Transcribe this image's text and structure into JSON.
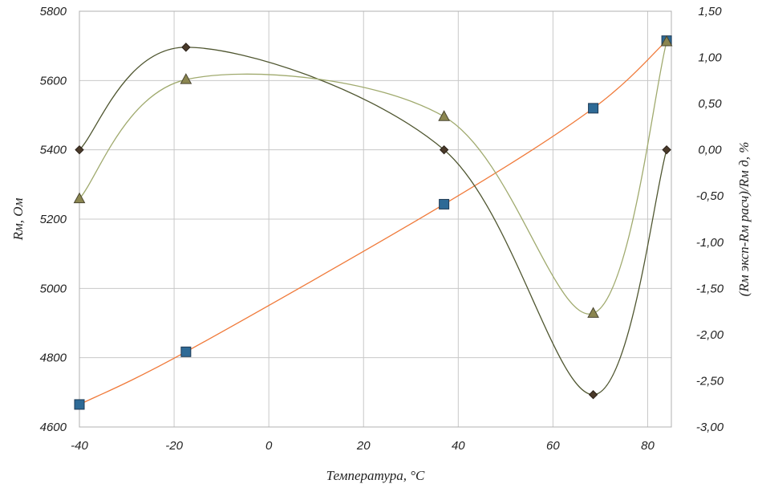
{
  "chart_data": {
    "type": "line",
    "title": "",
    "xlabel": "Температура, °С",
    "ylabel_left": "Rм, Ом",
    "ylabel_right": "(Rм эксп-Rм расч)/Rм д, %",
    "xlim": [
      -40,
      85
    ],
    "ylim_left": [
      4600,
      5800
    ],
    "ylim_right": [
      -3.0,
      1.5
    ],
    "x_ticks": [
      "-40",
      "-20",
      "0",
      "20",
      "40",
      "60",
      "80"
    ],
    "y_left_ticks": [
      "4600",
      "4800",
      "5000",
      "5200",
      "5400",
      "5600",
      "5800"
    ],
    "y_right_ticks": [
      "-3,00",
      "-2,50",
      "-2,00",
      "-1,50",
      "-1,00",
      "-0,50",
      "0,00",
      "0,50",
      "1,00",
      "1,50"
    ],
    "grid": true,
    "legend": "none",
    "series": [
      {
        "axis": "left",
        "marker": "square",
        "color": "#2e6a96",
        "line_color": "#f07a3a",
        "points": [
          [
            -40,
            4665
          ],
          [
            -17.5,
            4817
          ],
          [
            37,
            5243
          ],
          [
            68.5,
            5520
          ],
          [
            84,
            5715
          ]
        ]
      },
      {
        "axis": "right",
        "marker": "diamond",
        "color": "#4a3a2a",
        "line_color": "#4f5630",
        "points": [
          [
            -40,
            0.0
          ],
          [
            -17.5,
            1.11
          ],
          [
            37,
            0.0
          ],
          [
            68.5,
            -2.65
          ],
          [
            84,
            0.0
          ]
        ]
      },
      {
        "axis": "right",
        "marker": "triangle",
        "color": "#8b8650",
        "line_color": "#a0aa6e",
        "points": [
          [
            -40,
            -0.53
          ],
          [
            -17.5,
            0.76
          ],
          [
            37,
            0.36
          ],
          [
            68.5,
            -1.77
          ],
          [
            84,
            1.17
          ]
        ]
      }
    ]
  }
}
